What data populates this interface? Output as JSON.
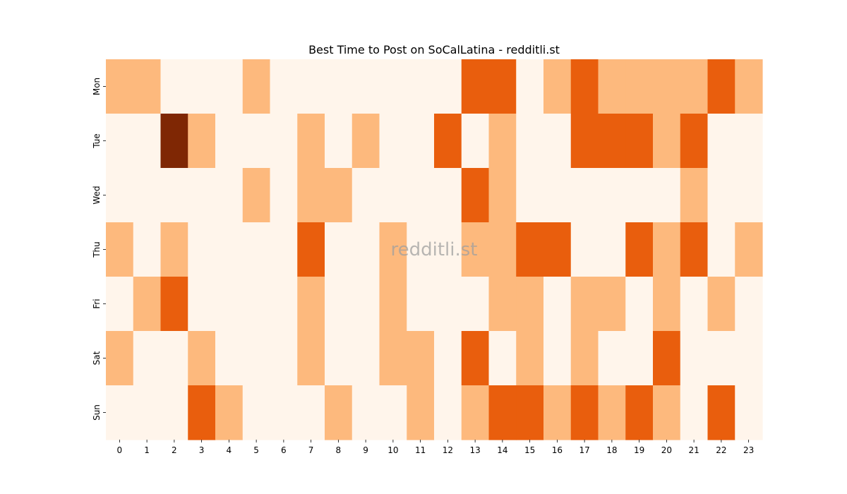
{
  "chart_data": {
    "type": "heatmap",
    "title": "Best Time to Post on SoCalLatina - redditli.st",
    "watermark": "redditli.st",
    "x_categories": [
      "0",
      "1",
      "2",
      "3",
      "4",
      "5",
      "6",
      "7",
      "8",
      "9",
      "10",
      "11",
      "12",
      "13",
      "14",
      "15",
      "16",
      "17",
      "18",
      "19",
      "20",
      "21",
      "22",
      "23"
    ],
    "y_categories": [
      "Mon",
      "Tue",
      "Wed",
      "Thu",
      "Fri",
      "Sat",
      "Sun"
    ],
    "values": [
      [
        1,
        1,
        0,
        0,
        0,
        1,
        0,
        0,
        0,
        0,
        0,
        0,
        0,
        2,
        2,
        0,
        1,
        2,
        1,
        1,
        1,
        1,
        2,
        1
      ],
      [
        0,
        0,
        3,
        1,
        0,
        0,
        0,
        1,
        0,
        1,
        0,
        0,
        2,
        0,
        1,
        0,
        0,
        2,
        2,
        2,
        1,
        2,
        0,
        0
      ],
      [
        0,
        0,
        0,
        0,
        0,
        1,
        0,
        1,
        1,
        0,
        0,
        0,
        0,
        2,
        1,
        0,
        0,
        0,
        0,
        0,
        0,
        1,
        0,
        0
      ],
      [
        1,
        0,
        1,
        0,
        0,
        0,
        0,
        2,
        0,
        0,
        1,
        0,
        0,
        1,
        1,
        2,
        2,
        0,
        0,
        2,
        1,
        2,
        0,
        1
      ],
      [
        0,
        1,
        2,
        0,
        0,
        0,
        0,
        1,
        0,
        0,
        1,
        0,
        0,
        0,
        1,
        1,
        0,
        1,
        1,
        0,
        1,
        0,
        1,
        0
      ],
      [
        1,
        0,
        0,
        1,
        0,
        0,
        0,
        1,
        0,
        0,
        1,
        1,
        0,
        2,
        0,
        1,
        0,
        1,
        0,
        0,
        2,
        0,
        0,
        0
      ],
      [
        0,
        0,
        0,
        2,
        1,
        0,
        0,
        0,
        1,
        0,
        0,
        1,
        0,
        1,
        2,
        2,
        1,
        2,
        1,
        2,
        1,
        0,
        2,
        0
      ]
    ],
    "colormap": "Oranges",
    "level_colors": [
      "#fff5eb",
      "#fdb97d",
      "#e95e0d",
      "#7f2704"
    ],
    "colorbar": false,
    "grid": false
  }
}
